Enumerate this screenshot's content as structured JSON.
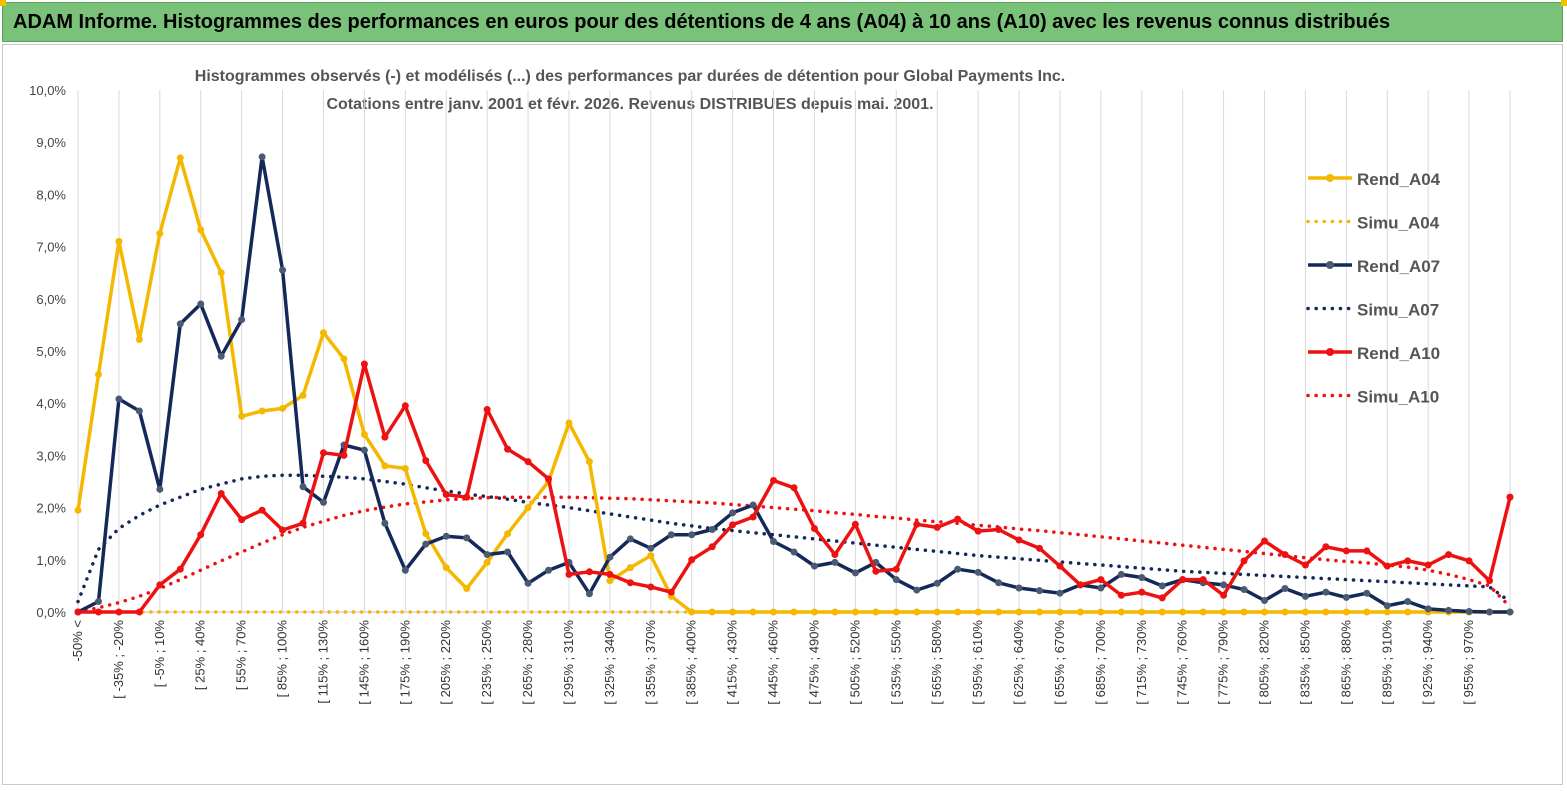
{
  "header": {
    "title": "ADAM Informe. Histogrammes des performances en euros pour des détentions de 4 ans (A04) à 10 ans (A10) avec les revenus connus distribués"
  },
  "chart_data": {
    "type": "line",
    "title": "Histogrammes observés (-) et modélisés (...) des performances par durées de détention pour Global Payments Inc.",
    "subtitle": "Cotations entre janv. 2001 et févr. 2026. Revenus DISTRIBUES depuis mai. 2001.",
    "xlabel": "",
    "ylabel": "",
    "ylim": [
      0,
      10
    ],
    "yticks": [
      "0,0%",
      "1,0%",
      "2,0%",
      "3,0%",
      "4,0%",
      "5,0%",
      "6,0%",
      "7,0%",
      "8,0%",
      "9,0%",
      "10,0%"
    ],
    "grid": "vertical",
    "legend_position": "right",
    "x_labels": [
      "-50% <",
      "[ -35% ; -20%",
      "[ -5% ; 10%",
      "[ 25% ; 40%",
      "[ 55% ; 70%",
      "[ 85% ; 100%",
      "[ 115% ; 130%",
      "[ 145% ; 160%",
      "[ 175% ; 190%",
      "[ 205% ; 220%",
      "[ 235% ; 250%",
      "[ 265% ; 280%",
      "[ 295% ; 310%",
      "[ 325% ; 340%",
      "[ 355% ; 370%",
      "[ 385% ; 400%",
      "[ 415% ; 430%",
      "[ 445% ; 460%",
      "[ 475% ; 490%",
      "[ 505% ; 520%",
      "[ 535% ; 550%",
      "[ 565% ; 580%",
      "[ 595% ; 610%",
      "[ 625% ; 640%",
      "[ 655% ; 670%",
      "[ 685% ; 700%",
      "[ 715% ; 730%",
      "[ 745% ; 760%",
      "[ 775% ; 790%",
      "[ 805% ; 820%",
      "[ 835% ; 850%",
      "[ 865% ; 880%",
      "[ 895% ; 910%",
      "[ 925% ; 940%",
      "[ 955% ; 970%"
    ],
    "series": [
      {
        "name": "Rend_A04",
        "style": "solid",
        "color": "#f5b800",
        "values": [
          1.95,
          4.55,
          7.1,
          5.22,
          7.25,
          8.7,
          7.32,
          6.5,
          3.75,
          3.85,
          3.9,
          4.15,
          5.35,
          4.85,
          3.4,
          2.8,
          2.75,
          1.5,
          0.85,
          0.45,
          0.95,
          1.5,
          2.0,
          2.5,
          3.62,
          2.88,
          0.6,
          0.85,
          1.08,
          0.3,
          0,
          0,
          0,
          0,
          0,
          0,
          0,
          0,
          0,
          0,
          0,
          0,
          0,
          0,
          0,
          0,
          0,
          0,
          0,
          0,
          0,
          0,
          0,
          0,
          0,
          0,
          0,
          0,
          0,
          0,
          0,
          0,
          0,
          0,
          0,
          0,
          0,
          0,
          0,
          0,
          0
        ]
      },
      {
        "name": "Simu_A04",
        "style": "dotted",
        "color": "#f5b800",
        "values": [
          0,
          0,
          0,
          0,
          0,
          0,
          0,
          0,
          0,
          0,
          0,
          0,
          0,
          0,
          0,
          0,
          0,
          0,
          0,
          0,
          0,
          0,
          0,
          0,
          0,
          0,
          0,
          0,
          0,
          0,
          0,
          0,
          0,
          0,
          0,
          0,
          0,
          0,
          0,
          0,
          0,
          0,
          0,
          0,
          0,
          0,
          0,
          0,
          0,
          0,
          0,
          0,
          0,
          0,
          0,
          0,
          0,
          0,
          0,
          0,
          0,
          0,
          0,
          0,
          0,
          0,
          0,
          0,
          0,
          0,
          0
        ]
      },
      {
        "name": "Rend_A07",
        "style": "solid",
        "color": "#14295a",
        "values": [
          0,
          0.2,
          4.08,
          3.85,
          2.35,
          5.52,
          5.9,
          4.9,
          5.6,
          8.72,
          6.55,
          2.4,
          2.1,
          3.2,
          3.1,
          1.7,
          0.8,
          1.3,
          1.45,
          1.42,
          1.1,
          1.15,
          0.55,
          0.8,
          0.95,
          0.35,
          1.05,
          1.4,
          1.22,
          1.48,
          1.48,
          1.58,
          1.9,
          2.05,
          1.35,
          1.15,
          0.88,
          0.95,
          0.75,
          0.95,
          0.62,
          0.42,
          0.55,
          0.82,
          0.76,
          0.56,
          0.46,
          0.41,
          0.36,
          0.52,
          0.46,
          0.72,
          0.66,
          0.5,
          0.62,
          0.56,
          0.52,
          0.43,
          0.22,
          0.45,
          0.3,
          0.38,
          0.28,
          0.36,
          0.12,
          0.2,
          0.06,
          0.03,
          0.01,
          0,
          0
        ]
      },
      {
        "name": "Simu_A07",
        "style": "dotted",
        "color": "#14295a",
        "values": [
          0.2,
          1.2,
          1.6,
          1.85,
          2.05,
          2.2,
          2.35,
          2.45,
          2.55,
          2.6,
          2.62,
          2.62,
          2.6,
          2.58,
          2.55,
          2.5,
          2.45,
          2.38,
          2.32,
          2.26,
          2.21,
          2.16,
          2.1,
          2.05,
          2.0,
          1.94,
          1.88,
          1.82,
          1.76,
          1.7,
          1.65,
          1.6,
          1.56,
          1.52,
          1.48,
          1.44,
          1.4,
          1.36,
          1.32,
          1.28,
          1.24,
          1.2,
          1.16,
          1.12,
          1.08,
          1.05,
          1.02,
          0.99,
          0.96,
          0.93,
          0.9,
          0.87,
          0.84,
          0.81,
          0.78,
          0.76,
          0.74,
          0.72,
          0.7,
          0.68,
          0.66,
          0.64,
          0.62,
          0.6,
          0.58,
          0.56,
          0.54,
          0.52,
          0.5,
          0.48,
          0.2
        ]
      },
      {
        "name": "Rend_A10",
        "style": "solid",
        "color": "#ee1111",
        "values": [
          0,
          0,
          0,
          0,
          0.52,
          0.82,
          1.48,
          2.27,
          1.77,
          1.95,
          1.57,
          1.7,
          3.05,
          3.0,
          4.75,
          3.35,
          3.95,
          2.9,
          2.25,
          2.2,
          3.88,
          3.12,
          2.88,
          2.55,
          0.72,
          0.77,
          0.72,
          0.56,
          0.48,
          0.38,
          1.0,
          1.25,
          1.67,
          1.82,
          2.52,
          2.38,
          1.6,
          1.1,
          1.68,
          0.78,
          0.82,
          1.68,
          1.62,
          1.78,
          1.55,
          1.58,
          1.38,
          1.22,
          0.88,
          0.52,
          0.62,
          0.32,
          0.38,
          0.27,
          0.62,
          0.62,
          0.32,
          0.98,
          1.36,
          1.1,
          0.9,
          1.25,
          1.17,
          1.17,
          0.88,
          0.98,
          0.9,
          1.1,
          0.98,
          0.6,
          2.2
        ]
      },
      {
        "name": "Simu_A10",
        "style": "dotted",
        "color": "#ee1111",
        "values": [
          0,
          0.08,
          0.18,
          0.3,
          0.45,
          0.62,
          0.8,
          0.98,
          1.15,
          1.32,
          1.48,
          1.62,
          1.74,
          1.85,
          1.94,
          2.01,
          2.07,
          2.11,
          2.15,
          2.17,
          2.19,
          2.2,
          2.2,
          2.2,
          2.2,
          2.19,
          2.18,
          2.17,
          2.15,
          2.13,
          2.11,
          2.09,
          2.06,
          2.03,
          2.0,
          1.97,
          1.94,
          1.9,
          1.87,
          1.83,
          1.8,
          1.76,
          1.73,
          1.7,
          1.66,
          1.63,
          1.59,
          1.56,
          1.52,
          1.48,
          1.44,
          1.4,
          1.36,
          1.32,
          1.28,
          1.24,
          1.2,
          1.16,
          1.12,
          1.08,
          1.04,
          1.0,
          0.97,
          0.94,
          0.9,
          0.86,
          0.8,
          0.72,
          0.62,
          0.5,
          0.1
        ]
      }
    ]
  }
}
